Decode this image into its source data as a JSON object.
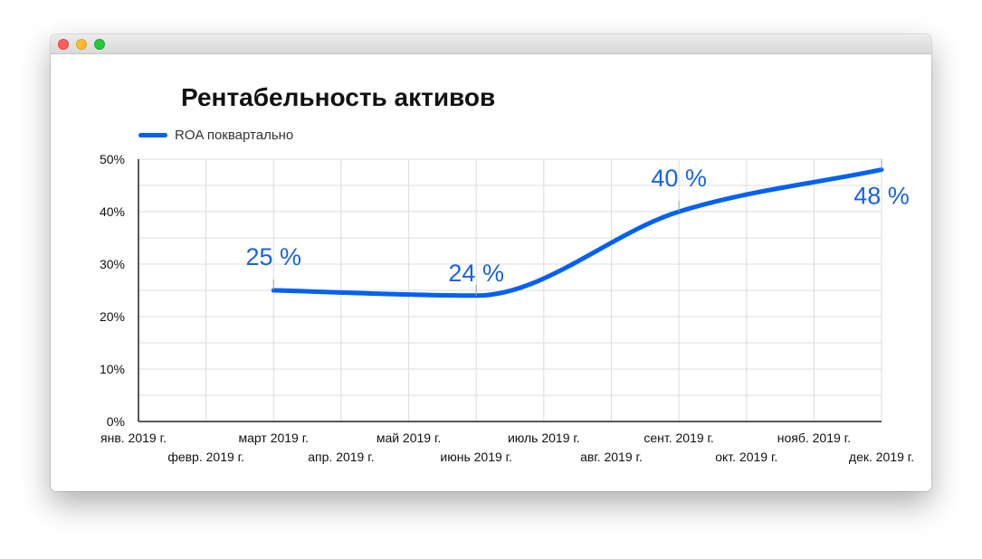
{
  "window": {
    "controls": [
      "close",
      "minimize",
      "zoom"
    ]
  },
  "colors": {
    "series": "#0061f2",
    "grid": "#dcdcdc",
    "axis": "#222222",
    "annotation": "#1a63e0"
  },
  "chart_data": {
    "type": "line",
    "title": "Рентабельность активов",
    "xlabel": "",
    "ylabel": "",
    "legend_position": "top-left",
    "grid": true,
    "smooth": true,
    "categories": [
      "янв. 2019 г.",
      "февр. 2019 г.",
      "март 2019 г.",
      "апр. 2019 г.",
      "май 2019 г.",
      "июнь 2019 г.",
      "июль 2019 г.",
      "авг. 2019 г.",
      "сент. 2019 г.",
      "окт. 2019 г.",
      "нояб. 2019 г.",
      "дек. 2019 г."
    ],
    "yticks": [
      "0%",
      "10%",
      "20%",
      "30%",
      "40%",
      "50%"
    ],
    "ylim": [
      0,
      50
    ],
    "ytick_step": 10,
    "series": [
      {
        "name": "ROA поквартально",
        "points": [
          {
            "x": "март 2019 г.",
            "y": 25
          },
          {
            "x": "июнь 2019 г.",
            "y": 24
          },
          {
            "x": "сент. 2019 г.",
            "y": 40
          },
          {
            "x": "дек. 2019 г.",
            "y": 48
          }
        ]
      }
    ],
    "data_labels": [
      "25 %",
      "24 %",
      "40 %",
      "48 %"
    ]
  }
}
